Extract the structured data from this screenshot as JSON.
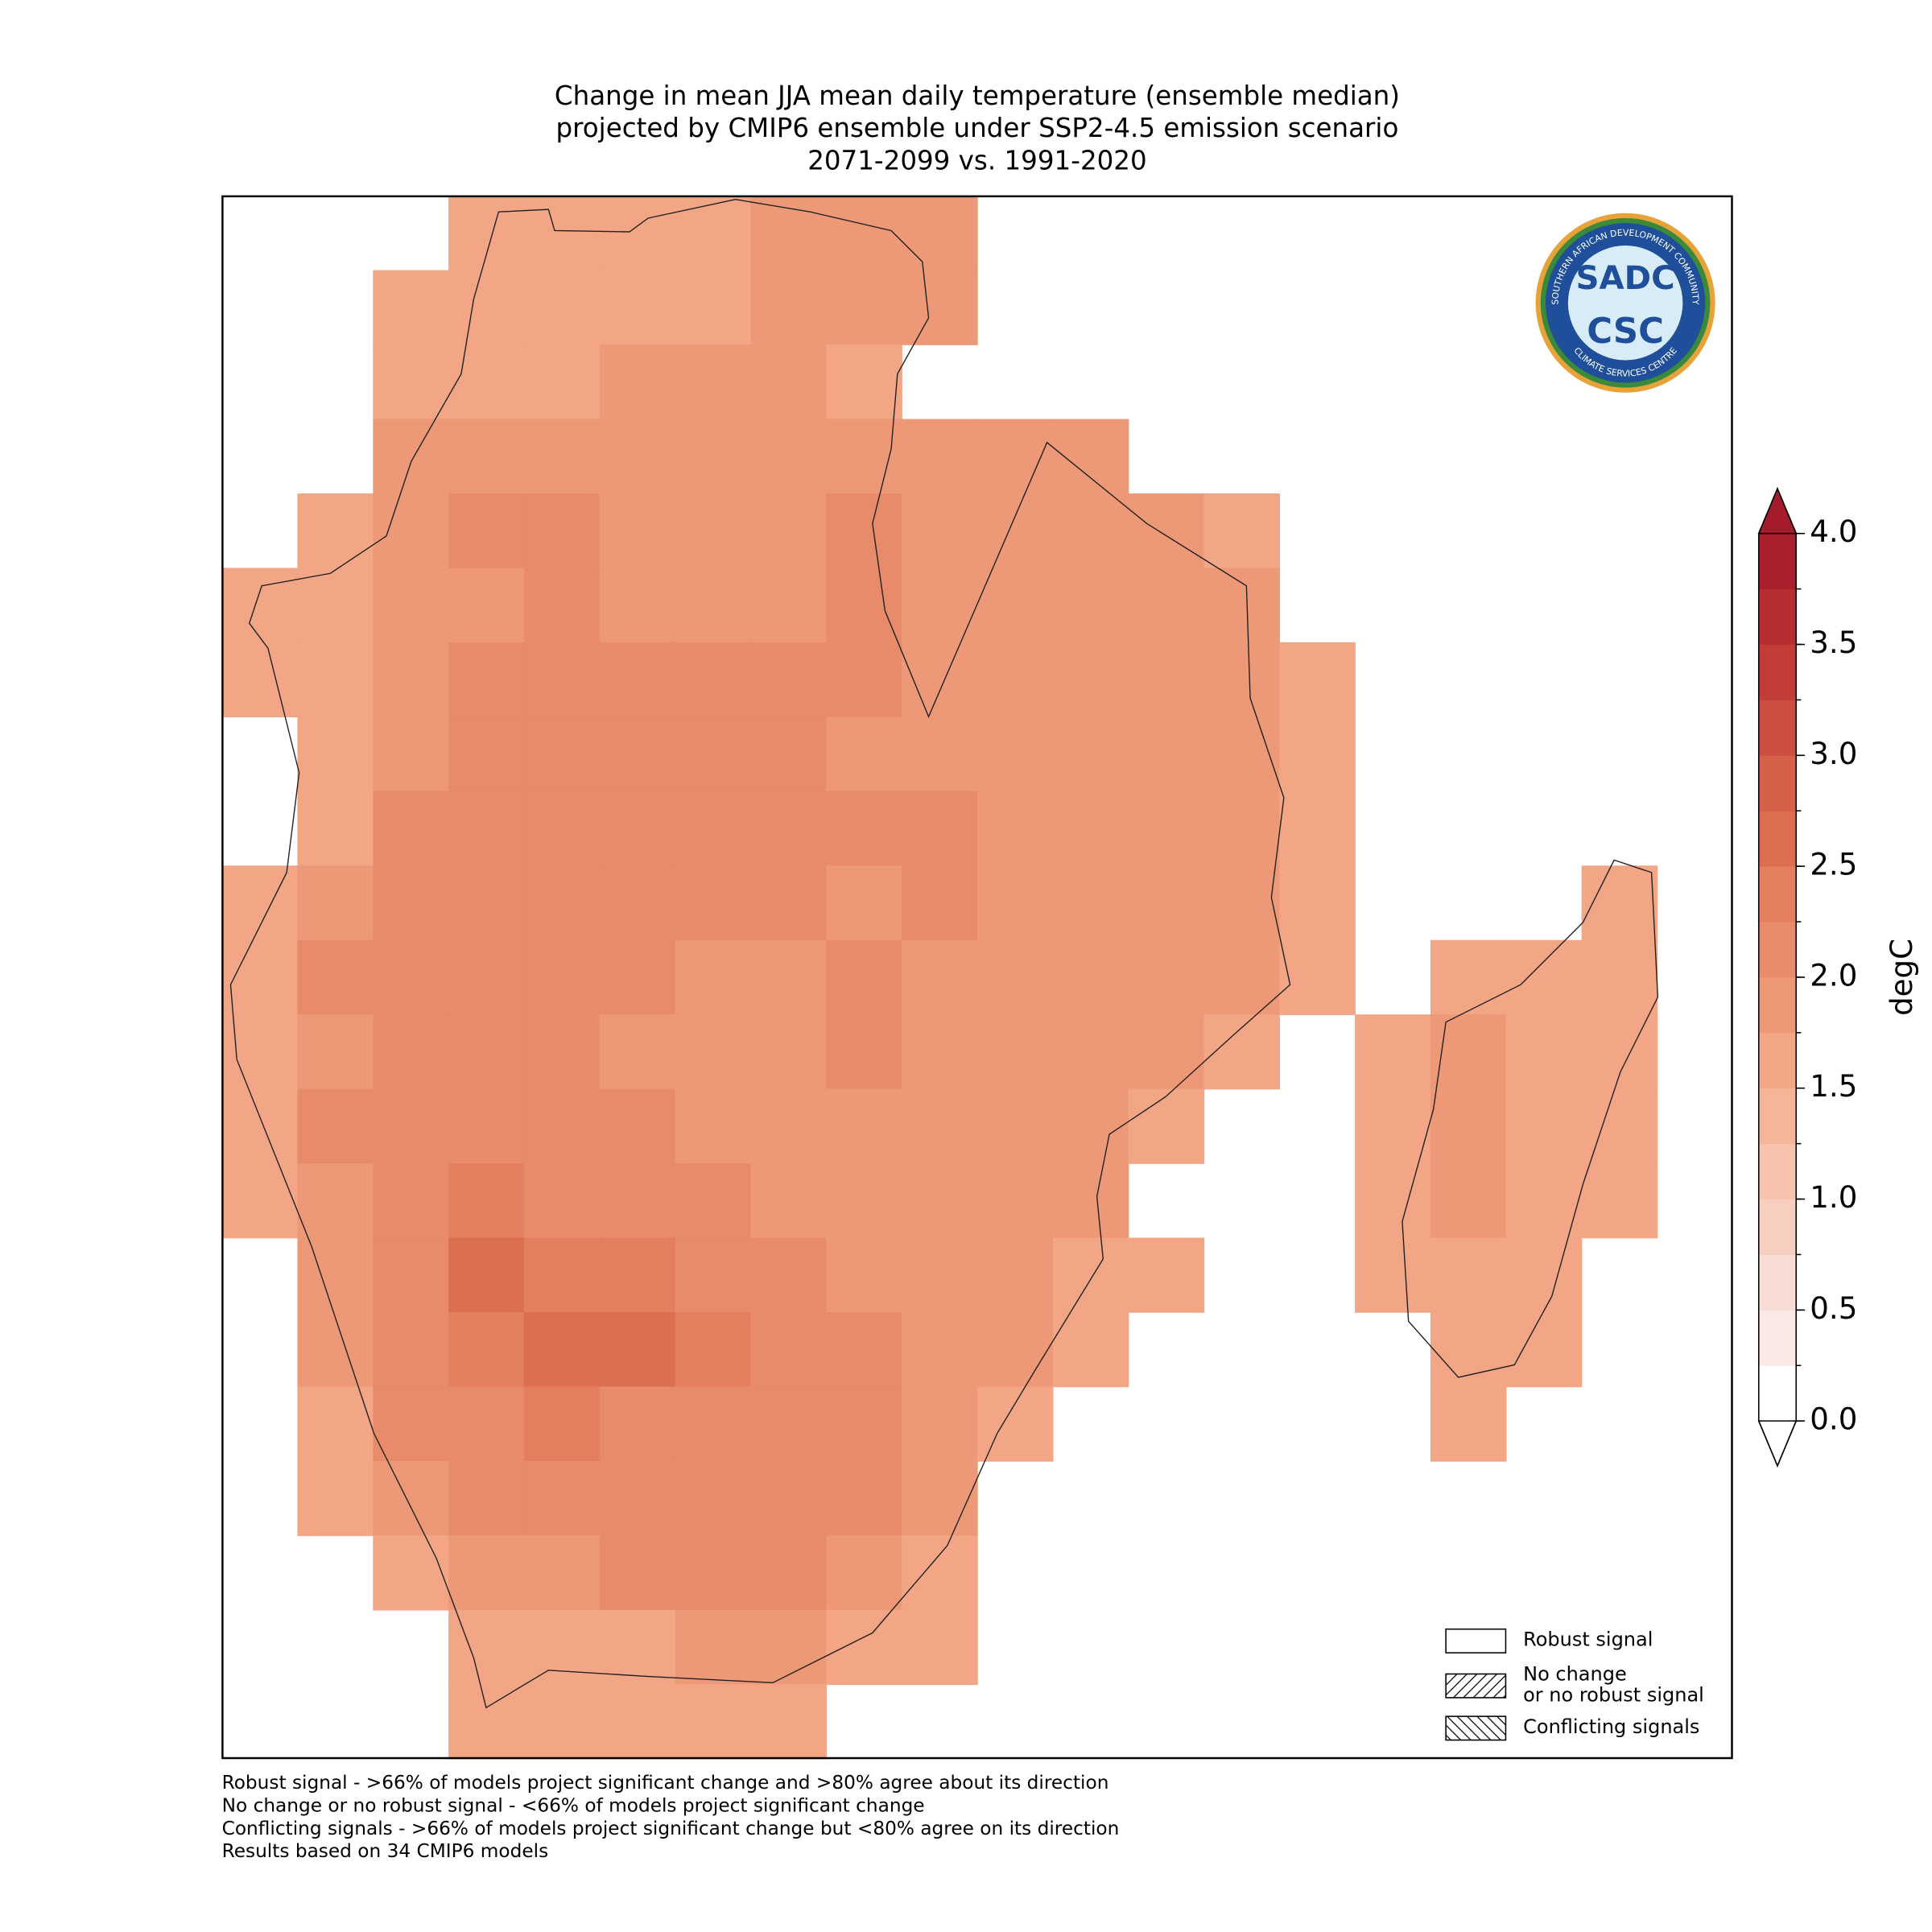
{
  "title": {
    "lines": [
      "Change in mean JJA mean daily temperature (ensemble median)",
      "projected by CMIP6 ensemble under SSP2-4.5 emission scenario",
      "2071-2099 vs. 1991-2020"
    ]
  },
  "map": {
    "grid": [
      [
        null,
        null,
        null,
        1.6,
        1.6,
        1.7,
        1.7,
        1.8,
        1.8,
        1.9,
        null,
        null,
        null,
        null,
        null,
        null,
        null,
        null,
        null,
        null
      ],
      [
        null,
        null,
        1.6,
        1.6,
        1.7,
        1.7,
        1.7,
        1.8,
        1.8,
        1.9,
        null,
        null,
        null,
        null,
        null,
        null,
        null,
        null,
        null,
        null
      ],
      [
        null,
        null,
        1.6,
        1.7,
        1.7,
        1.8,
        1.8,
        1.8,
        1.7,
        null,
        null,
        null,
        null,
        null,
        null,
        null,
        null,
        null,
        null,
        null
      ],
      [
        null,
        null,
        1.8,
        1.8,
        1.8,
        1.8,
        1.8,
        1.8,
        1.8,
        1.9,
        1.9,
        1.9,
        null,
        null,
        null,
        null,
        null,
        null,
        null,
        null
      ],
      [
        null,
        1.6,
        1.8,
        2.0,
        2.0,
        1.9,
        1.9,
        1.9,
        2.0,
        1.9,
        1.9,
        1.9,
        1.9,
        1.7,
        null,
        null,
        null,
        null,
        null,
        null
      ],
      [
        1.6,
        1.7,
        1.8,
        1.9,
        2.0,
        1.9,
        1.9,
        1.9,
        2.0,
        1.9,
        1.9,
        1.9,
        1.9,
        1.8,
        null,
        null,
        null,
        null,
        null,
        null
      ],
      [
        1.5,
        1.6,
        1.8,
        2.0,
        2.0,
        2.0,
        2.0,
        2.0,
        2.0,
        1.9,
        1.9,
        1.9,
        1.9,
        1.8,
        1.7,
        null,
        null,
        null,
        null,
        null
      ],
      [
        null,
        1.5,
        1.9,
        2.0,
        2.0,
        2.0,
        2.0,
        2.0,
        1.9,
        1.9,
        1.9,
        1.9,
        1.9,
        1.8,
        1.7,
        null,
        null,
        null,
        null,
        null
      ],
      [
        null,
        1.6,
        2.0,
        2.0,
        2.0,
        2.0,
        2.0,
        2.0,
        2.0,
        2.0,
        1.9,
        1.9,
        1.9,
        1.8,
        1.7,
        null,
        null,
        null,
        null,
        null
      ],
      [
        1.6,
        1.8,
        2.0,
        2.2,
        2.1,
        2.0,
        2.0,
        2.0,
        1.9,
        2.0,
        1.9,
        1.9,
        1.8,
        1.8,
        1.7,
        null,
        null,
        null,
        1.5,
        null
      ],
      [
        1.7,
        2.1,
        2.1,
        2.1,
        2.0,
        2.0,
        1.9,
        1.9,
        2.0,
        1.9,
        1.9,
        1.9,
        1.8,
        1.8,
        1.7,
        null,
        1.6,
        1.6,
        1.5,
        null
      ],
      [
        1.7,
        1.9,
        2.0,
        2.1,
        2.1,
        1.9,
        1.8,
        1.9,
        2.0,
        1.9,
        1.9,
        1.9,
        1.8,
        1.7,
        null,
        1.7,
        1.8,
        1.7,
        1.5,
        null
      ],
      [
        1.6,
        2.0,
        2.2,
        2.2,
        2.2,
        2.1,
        1.9,
        1.9,
        1.9,
        1.9,
        1.9,
        1.9,
        1.7,
        null,
        null,
        1.7,
        1.8,
        1.7,
        1.5,
        null
      ],
      [
        1.6,
        1.9,
        2.2,
        2.3,
        2.2,
        2.1,
        2.0,
        1.9,
        1.9,
        1.9,
        1.8,
        1.8,
        null,
        null,
        null,
        1.7,
        1.8,
        1.7,
        1.5,
        null
      ],
      [
        null,
        1.8,
        2.2,
        2.5,
        2.4,
        2.3,
        2.2,
        2.1,
        1.9,
        1.8,
        1.8,
        1.7,
        1.7,
        null,
        null,
        1.7,
        1.7,
        1.6,
        null,
        null
      ],
      [
        null,
        1.8,
        2.2,
        2.4,
        2.5,
        2.5,
        2.3,
        2.1,
        2.0,
        1.8,
        1.8,
        1.7,
        null,
        null,
        null,
        null,
        1.6,
        1.6,
        null,
        null
      ],
      [
        null,
        1.7,
        2.1,
        2.2,
        2.3,
        2.2,
        2.2,
        2.2,
        2.0,
        1.8,
        1.7,
        null,
        null,
        null,
        null,
        null,
        1.6,
        null,
        null,
        null
      ],
      [
        null,
        1.6,
        1.8,
        2.0,
        2.1,
        2.1,
        2.2,
        2.2,
        2.0,
        1.8,
        null,
        null,
        null,
        null,
        null,
        null,
        null,
        null,
        null,
        null
      ],
      [
        null,
        null,
        1.6,
        1.8,
        1.9,
        2.0,
        2.0,
        2.0,
        1.9,
        1.7,
        null,
        null,
        null,
        null,
        null,
        null,
        null,
        null,
        null,
        null
      ],
      [
        null,
        null,
        null,
        1.6,
        1.7,
        1.7,
        1.8,
        1.8,
        1.7,
        1.6,
        null,
        null,
        null,
        null,
        null,
        null,
        null,
        null,
        null,
        null
      ],
      [
        null,
        null,
        null,
        1.5,
        1.5,
        1.5,
        1.5,
        1.5,
        null,
        null,
        null,
        null,
        null,
        null,
        null,
        null,
        null,
        null,
        null,
        null
      ]
    ]
  },
  "colorbar": {
    "label": "degC",
    "levels": [
      0,
      0.25,
      0.5,
      0.75,
      1,
      1.25,
      1.5,
      1.75,
      2,
      2.25,
      2.5,
      2.75,
      3,
      3.25,
      3.5,
      3.75,
      4
    ],
    "colors": [
      "#ffffff",
      "#f9e8e3",
      "#f8ddd4",
      "#f6cfc0",
      "#f5c3ae",
      "#f4b599",
      "#f2a686",
      "#ed9877",
      "#e88b6b",
      "#e37f5f",
      "#dc6f52",
      "#d46049",
      "#cc4e40",
      "#c23d38",
      "#b72d32",
      "#ab1e2b"
    ],
    "over_color": "#a51d2d",
    "under_color": "#ffffff",
    "ticks": [
      {
        "value": 0,
        "label": "0.0"
      },
      {
        "value": 0.5,
        "label": "0.5"
      },
      {
        "value": 1,
        "label": "1.0"
      },
      {
        "value": 1.5,
        "label": "1.5"
      },
      {
        "value": 2,
        "label": "2.0"
      },
      {
        "value": 2.5,
        "label": "2.5"
      },
      {
        "value": 3,
        "label": "3.0"
      },
      {
        "value": 3.5,
        "label": "3.5"
      },
      {
        "value": 4,
        "label": "4.0"
      }
    ]
  },
  "legend": [
    {
      "label": [
        "Robust signal"
      ],
      "hatch": "none"
    },
    {
      "label": [
        "No change",
        "or no robust signal"
      ],
      "hatch": "forward"
    },
    {
      "label": [
        "Conflicting signals"
      ],
      "hatch": "back"
    }
  ],
  "footnotes": [
    "Robust signal - >66% of models project significant change and >80% agree about its direction",
    "No change or no robust signal - <66% of models project significant change",
    "Conflicting signals - >66% of models project significant change but <80% agree on its direction",
    "Results based on 34 CMIP6 models"
  ],
  "logo": {
    "ring_top": "SOUTHERN AFRICAN DEVELOPMENT COMMUNITY",
    "ring_bottom": "CLIMATE SERVICES CENTRE",
    "upper": "SADC",
    "lower": "CSC"
  }
}
